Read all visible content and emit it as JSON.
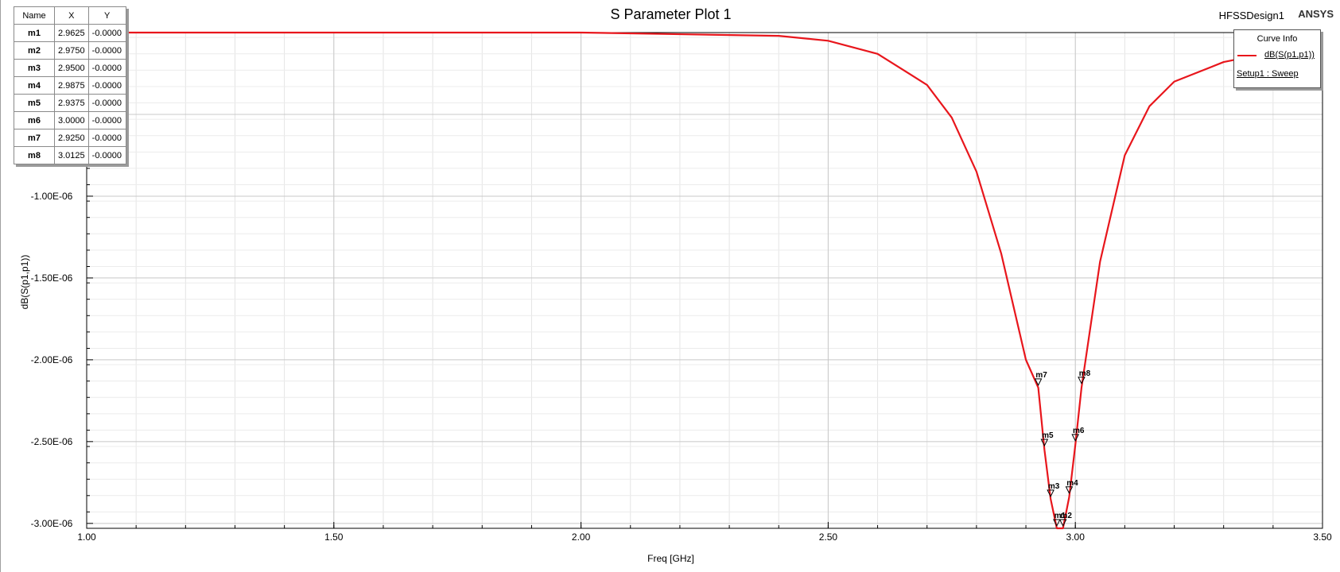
{
  "window": {
    "design_name": "HFSSDesign1",
    "vendor": "ANSYS"
  },
  "marker_table": {
    "headers": [
      "Name",
      "X",
      "Y"
    ],
    "rows": [
      {
        "name": "m1",
        "x": "2.9625",
        "y": "-0.0000"
      },
      {
        "name": "m2",
        "x": "2.9750",
        "y": "-0.0000"
      },
      {
        "name": "m3",
        "x": "2.9500",
        "y": "-0.0000"
      },
      {
        "name": "m4",
        "x": "2.9875",
        "y": "-0.0000"
      },
      {
        "name": "m5",
        "x": "2.9375",
        "y": "-0.0000"
      },
      {
        "name": "m6",
        "x": "3.0000",
        "y": "-0.0000"
      },
      {
        "name": "m7",
        "x": "2.9250",
        "y": "-0.0000"
      },
      {
        "name": "m8",
        "x": "3.0125",
        "y": "-0.0000"
      }
    ]
  },
  "curve_info": {
    "title": "Curve Info",
    "curve_name": "dB(S(p1,p1))",
    "setup": "Setup1 : Sweep",
    "color": "#e8161c"
  },
  "chart_data": {
    "type": "line",
    "title": "S Parameter Plot 1",
    "xlabel": "Freq [GHz]",
    "ylabel": "dB(S(p1,p1))",
    "xlim": [
      1.0,
      3.5
    ],
    "ylim": [
      -3.03e-06,
      -0.0
    ],
    "x_ticks": [
      1.0,
      1.5,
      2.0,
      2.5,
      3.0,
      3.5
    ],
    "x_tick_labels": [
      "1.00",
      "1.50",
      "2.00",
      "2.50",
      "3.00",
      "3.50"
    ],
    "y_ticks": [
      -1e-06,
      -1.5e-06,
      -2e-06,
      -2.5e-06,
      -3e-06
    ],
    "y_tick_labels": [
      "-1.00E-06",
      "-1.50E-06",
      "-2.00E-06",
      "-2.50E-06",
      "-3.00E-06"
    ],
    "grid": true,
    "series": [
      {
        "name": "dB(S(p1,p1))",
        "color": "#e8161c",
        "x": [
          1.0,
          1.5,
          1.8,
          2.0,
          2.2,
          2.4,
          2.5,
          2.6,
          2.7,
          2.75,
          2.8,
          2.85,
          2.9,
          2.925,
          2.9375,
          2.95,
          2.9625,
          2.975,
          2.9875,
          3.0,
          3.0125,
          3.05,
          3.1,
          3.15,
          3.2,
          3.3,
          3.4,
          3.5
        ],
        "y": [
          -0.0,
          -0.0,
          -0.0,
          -0.0,
          -1e-08,
          -2e-08,
          -5e-08,
          -1.3e-07,
          -3.2e-07,
          -5.2e-07,
          -8.5e-07,
          -1.35e-06,
          -2e-06,
          -2.17e-06,
          -2.55e-06,
          -2.85e-06,
          -3.03e-06,
          -3.03e-06,
          -2.84e-06,
          -2.52e-06,
          -2.17e-06,
          -1.4e-06,
          -7.5e-07,
          -4.5e-07,
          -3e-07,
          -1.8e-07,
          -1.2e-07,
          -9e-08
        ]
      }
    ],
    "markers": [
      {
        "label": "m1",
        "x": 2.9625,
        "y": -3.02e-06
      },
      {
        "label": "m2",
        "x": 2.975,
        "y": -3.02e-06
      },
      {
        "label": "m3",
        "x": 2.95,
        "y": -2.84e-06
      },
      {
        "label": "m4",
        "x": 2.9875,
        "y": -2.82e-06
      },
      {
        "label": "m5",
        "x": 2.9375,
        "y": -2.53e-06
      },
      {
        "label": "m6",
        "x": 3.0,
        "y": -2.5e-06
      },
      {
        "label": "m7",
        "x": 2.925,
        "y": -2.16e-06
      },
      {
        "label": "m8",
        "x": 3.0125,
        "y": -2.15e-06
      }
    ]
  }
}
